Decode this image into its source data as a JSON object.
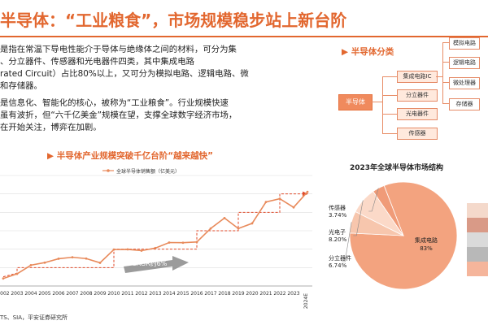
{
  "header": {
    "title": "半导体：“工业粮食”，市场规模稳步站上新台阶"
  },
  "body_text": {
    "para1_lines": [
      "是指在常温下导电性能介于导体与绝缘体之间的材料，可分为集",
      "、分立器件、传感器和光电器件四类，其中集成电路",
      "rated Circuit）占比80%以上，又可分为模拟电路、逻辑电路、微",
      "和存储器。"
    ],
    "para2_lines": [
      "是信息化、智能化的核心，被称为“工业粮食”。行业规模快速",
      "虽有波折，但“六千亿美金”规模在望，支撑全球数字经济市场，",
      "在开始关注，博弈在加剧。"
    ]
  },
  "classification": {
    "title": "半导体分类",
    "root": "半导体",
    "level1": [
      "集成电路IC",
      "分立器件",
      "光电器件",
      "传感器"
    ],
    "level2": [
      "模拟电路",
      "逻辑电路",
      "微处理器",
      "存储器"
    ]
  },
  "line_chart": {
    "title": "半导体产业规模突破千亿台阶“越来越快”",
    "annotation": "CAGR约6%",
    "source": "TS、SIA，平安证券研究所"
  },
  "pie_chart": {
    "title": "2023年全球半导体市场结构"
  },
  "chart_data": [
    {
      "type": "line",
      "title": "",
      "legend": [
        "全球半导体销售额（亿美元）"
      ],
      "x": [
        "2002",
        "2003",
        "2004",
        "2005",
        "2006",
        "2007",
        "2008",
        "2009",
        "2010",
        "2011",
        "2012",
        "2013",
        "2014",
        "2015",
        "2016",
        "2017",
        "2018",
        "2019",
        "2020",
        "2021",
        "2022",
        "2023",
        "2024E"
      ],
      "series": [
        {
          "name": "全球半导体销售额（亿美元）",
          "values": [
            1410,
            1660,
            2130,
            2270,
            2480,
            2560,
            2490,
            2260,
            2980,
            2990,
            2920,
            3060,
            3360,
            3350,
            3390,
            4120,
            4690,
            4120,
            4400,
            5560,
            5740,
            5270,
            6110
          ]
        }
      ],
      "xlabel": "",
      "ylabel": "",
      "ylim": [
        1000,
        7000
      ],
      "colors": {
        "line": "#e88a5b",
        "grid": "#dddddd",
        "staircase": "#e04a2a"
      }
    },
    {
      "type": "pie",
      "title": "2023年全球半导体市场结构",
      "slices": [
        {
          "label": "集成电路",
          "pct_text": "83%",
          "value": 83.0,
          "color": "#f3a37f"
        },
        {
          "label": "分立器件",
          "pct_text": "6.74%",
          "value": 6.74,
          "color": "#f7c6ad"
        },
        {
          "label": "光电子",
          "pct_text": "8.20%",
          "value": 8.2,
          "color": "#fbd9c8"
        },
        {
          "label": "传感器",
          "pct_text": "3.74%",
          "value": 3.74,
          "color": "#f09b78"
        }
      ],
      "side_bar_colors": [
        "#f4d9cb",
        "#d99a87",
        "#dadada",
        "#b8b8b8",
        "#f5b59b"
      ]
    }
  ]
}
